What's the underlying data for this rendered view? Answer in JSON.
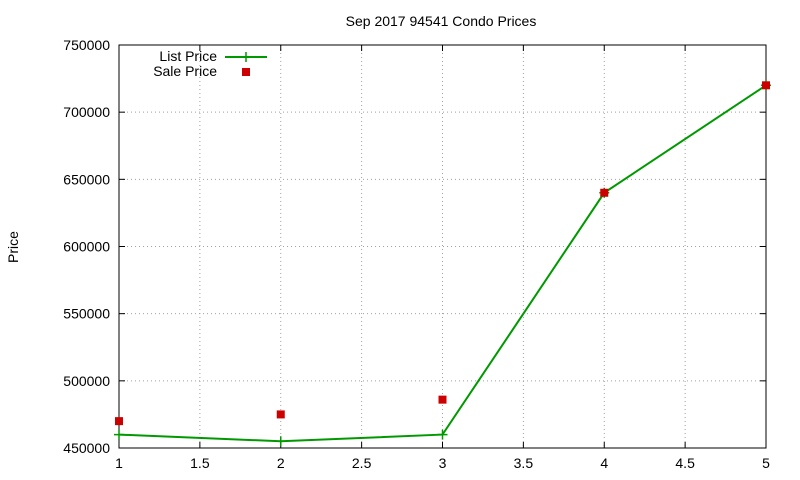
{
  "chart_data": {
    "type": "line",
    "title": "Sep 2017 94541 Condo Prices",
    "xlabel": "",
    "ylabel": "Price",
    "xlim": [
      1,
      5
    ],
    "ylim": [
      450000,
      750000
    ],
    "x_ticks": [
      "1",
      "1.5",
      "2",
      "2.5",
      "3",
      "3.5",
      "4",
      "4.5",
      "5"
    ],
    "y_ticks": [
      "450000",
      "500000",
      "550000",
      "600000",
      "650000",
      "700000",
      "750000"
    ],
    "grid": true,
    "legend_position": "top-left",
    "series": [
      {
        "name": "List Price",
        "style": "line-with-points",
        "color": "#009900",
        "x": [
          1,
          2,
          3,
          4,
          5
        ],
        "y": [
          460000,
          455000,
          460000,
          640000,
          720000
        ]
      },
      {
        "name": "Sale Price",
        "style": "points",
        "color": "#cc0000",
        "x": [
          1,
          2,
          3,
          4,
          5
        ],
        "y": [
          470000,
          475000,
          486000,
          640000,
          720000
        ]
      }
    ]
  }
}
